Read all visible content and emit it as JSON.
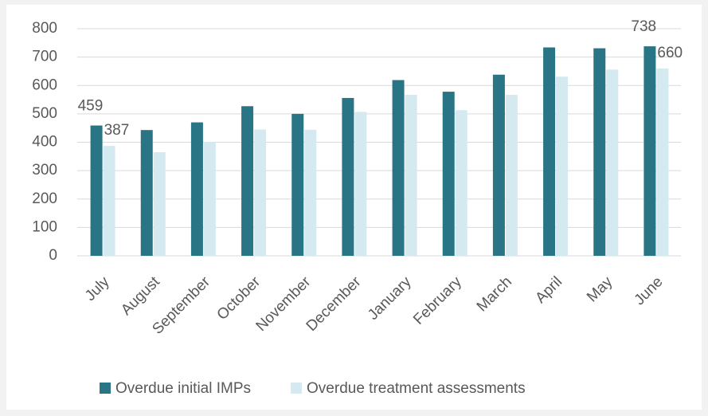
{
  "chart_data": {
    "type": "bar",
    "categories": [
      "July",
      "August",
      "September",
      "October",
      "November",
      "December",
      "January",
      "February",
      "March",
      "April",
      "May",
      "June"
    ],
    "series": [
      {
        "name": "Overdue initial IMPs",
        "color": "#2a7585",
        "values": [
          459,
          443,
          470,
          527,
          500,
          556,
          619,
          578,
          638,
          734,
          731,
          738
        ]
      },
      {
        "name": "Overdue treatment assessments",
        "color": "#d5eaf0",
        "values": [
          387,
          365,
          401,
          445,
          444,
          507,
          567,
          513,
          567,
          631,
          656,
          660
        ]
      }
    ],
    "labeled_categories": [
      0,
      11
    ],
    "ylim": [
      0,
      800
    ],
    "yticks": [
      0,
      100,
      200,
      300,
      400,
      500,
      600,
      700,
      800
    ],
    "grid": true,
    "legend": "bottom"
  }
}
